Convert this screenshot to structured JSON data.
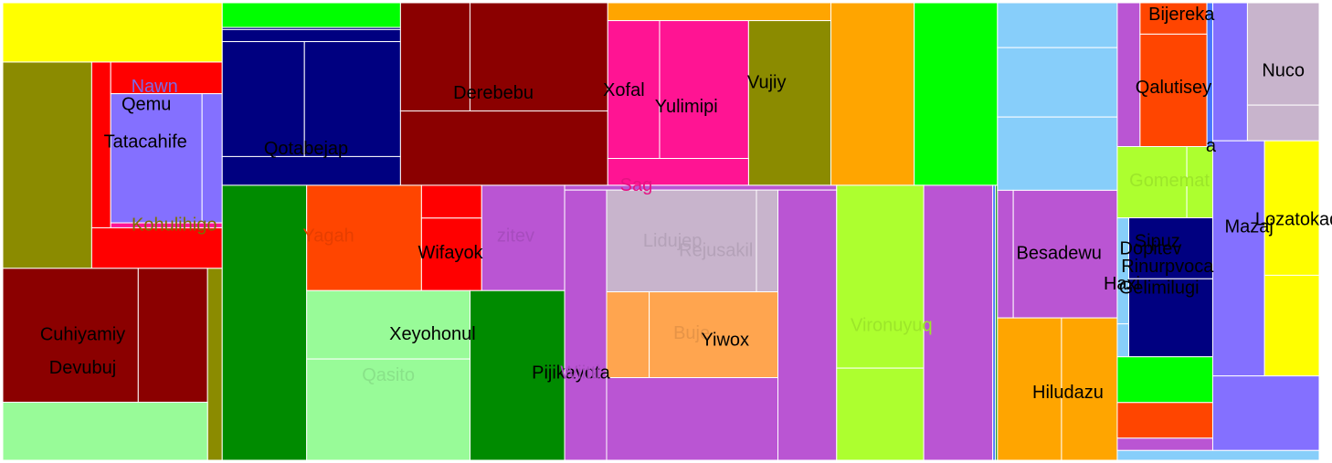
{
  "chart_data": {
    "type": "treemap",
    "title": "",
    "colors": {
      "yellow": "#ffff00",
      "olive": "#8b8b00",
      "red": "#ff0000",
      "slate": "#8470ff",
      "pink": "#ff1493",
      "maroon": "#8b0000",
      "palegreen": "#98fb98",
      "lime": "#00ff00",
      "navy": "#000080",
      "green": "#008b00",
      "orangered": "#ff4500",
      "orchid": "#ba55d3",
      "orange": "#ffa500",
      "thistle": "#c8b4cc",
      "sandy": "#ffa54f",
      "greenyellow": "#adff2f",
      "skyblue": "#87cefa",
      "royal": "#4876ff"
    },
    "leaves": [
      {
        "c": "yellow",
        "v": 3.1
      },
      {
        "c": "olive",
        "v": 4.37
      },
      {
        "c": "red",
        "v": 0.75
      },
      {
        "c": "red",
        "v": 0.84
      },
      {
        "c": "slate",
        "v": 2.81
      },
      {
        "c": "slate",
        "v": 0.62
      },
      {
        "c": "pink",
        "v": 0.13
      },
      {
        "c": "red",
        "v": 1.26
      },
      {
        "c": "maroon",
        "v": 4.32
      },
      {
        "c": "maroon",
        "v": 2.21
      },
      {
        "c": "olive",
        "v": 0.67
      },
      {
        "c": "palegreen",
        "v": 2.83
      },
      {
        "c": "lime",
        "v": 1.05
      },
      {
        "c": "navy",
        "v": 0.09
      },
      {
        "c": "navy",
        "v": 0.51
      },
      {
        "c": "navy",
        "v": 2.25
      },
      {
        "c": "navy",
        "v": 2.63
      },
      {
        "c": "navy",
        "v": 1.22
      },
      {
        "c": "maroon",
        "v": 1.79
      },
      {
        "c": "maroon",
        "v": 3.55
      },
      {
        "c": "maroon",
        "v": 3.67
      },
      {
        "c": "orange",
        "v": 0.95
      },
      {
        "c": "pink",
        "v": 1.7
      },
      {
        "c": "pink",
        "v": 2.92
      },
      {
        "c": "olive",
        "v": 3.23
      },
      {
        "c": "pink",
        "v": 0.9
      },
      {
        "c": "orange",
        "v": 3.62
      },
      {
        "c": "lime",
        "v": 3.62
      },
      {
        "c": "green",
        "v": 5.53
      },
      {
        "c": "orangered",
        "v": 2.88
      },
      {
        "c": "red",
        "v": 0.47
      },
      {
        "c": "red",
        "v": 1.04
      },
      {
        "c": "orchid",
        "v": 2.08
      },
      {
        "c": "palegreen",
        "v": 2.66
      },
      {
        "c": "palegreen",
        "v": 3.94
      },
      {
        "c": "green",
        "v": 3.82
      },
      {
        "c": "orchid",
        "v": 0.31
      },
      {
        "c": "orchid",
        "v": 2.7
      },
      {
        "c": "orchid",
        "v": 3.78
      },
      {
        "c": "thistle",
        "v": 3.63
      },
      {
        "c": "thistle",
        "v": 0.52
      },
      {
        "c": "sandy",
        "v": 0.87
      },
      {
        "c": "sandy",
        "v": 2.63
      },
      {
        "c": "orchid",
        "v": 3.37
      },
      {
        "c": "greenyellow",
        "v": 3.79
      },
      {
        "c": "greenyellow",
        "v": 1.91
      },
      {
        "c": "orchid",
        "v": 4.52
      },
      {
        "c": "royal",
        "v": 0.18
      },
      {
        "c": "green",
        "v": 0.13
      },
      {
        "c": "skyblue",
        "v": 1.28
      },
      {
        "c": "skyblue",
        "v": 1.98
      },
      {
        "c": "skyblue",
        "v": 2.09
      },
      {
        "c": "orchid",
        "v": 0.48
      },
      {
        "c": "orchid",
        "v": 3.16
      },
      {
        "c": "orange",
        "v": 2.17
      },
      {
        "c": "orange",
        "v": 1.89
      },
      {
        "c": "orchid",
        "v": 0.78
      },
      {
        "c": "orangered",
        "v": 0.5
      },
      {
        "c": "royal",
        "v": 0.2
      },
      {
        "c": "orangered",
        "v": 1.79
      },
      {
        "c": "greenyellow",
        "v": 1.18
      },
      {
        "c": "greenyellow",
        "v": 0.44
      },
      {
        "c": "skyblue",
        "v": 0.29
      },
      {
        "c": "skyblue",
        "v": 0.09
      },
      {
        "c": "navy",
        "v": 1.22
      },
      {
        "c": "navy",
        "v": 1.56
      },
      {
        "c": "lime",
        "v": 1.04
      },
      {
        "c": "orangered",
        "v": 0.81
      },
      {
        "c": "orchid",
        "v": 0.28
      },
      {
        "c": "slate",
        "v": 1.14
      },
      {
        "c": "thistle",
        "v": 1.75
      },
      {
        "c": "thistle",
        "v": 0.61
      },
      {
        "c": "slate",
        "v": 2.9
      },
      {
        "c": "yellow",
        "v": 1.75
      },
      {
        "c": "yellow",
        "v": 1.31
      },
      {
        "c": "slate",
        "v": 1.89
      },
      {
        "c": "skyblue",
        "v": 0.47
      }
    ],
    "labels": [
      {
        "text": "Qemu",
        "color": "#000000",
        "leaf": 4
      },
      {
        "text": "Tatacahife",
        "color": "#000000",
        "leaf": 4
      },
      {
        "text": "Nawn",
        "color": "#7b6ae6",
        "leaf": 4
      },
      {
        "text": "Kohulihigo",
        "color": "#7d6f00",
        "leaf": 6
      },
      {
        "text": "Cuhiyamiy",
        "color": "#000000",
        "leaf": 8
      },
      {
        "text": "Devubuj",
        "color": "#000000",
        "leaf": 8
      },
      {
        "text": "Qotabejap",
        "color": "#000000",
        "leaf": 15
      },
      {
        "text": "Derebebu",
        "color": "#000000",
        "leaf": 19
      },
      {
        "text": "Sag",
        "color": "#e61282",
        "leaf": 22
      },
      {
        "text": "Xofal",
        "color": "#000000",
        "leaf": 22
      },
      {
        "text": "Yulimipi",
        "color": "#000000",
        "leaf": 23
      },
      {
        "text": "Vujiy",
        "color": "#000000",
        "leaf": 24
      },
      {
        "text": "Yagah",
        "color": "#e63e00",
        "leaf": 29
      },
      {
        "text": "Wifayok",
        "color": "#000000",
        "leaf": 31
      },
      {
        "text": "zitev",
        "color": "#a74cbe",
        "leaf": 32
      },
      {
        "text": "Xeyohonul",
        "color": "#000000",
        "leaf": 33
      },
      {
        "text": "Qasito",
        "color": "#89e289",
        "leaf": 34
      },
      {
        "text": "Pijikayota",
        "color": "#000000",
        "leaf": 37
      },
      {
        "text": "Wiitti",
        "color": "#a74cbe",
        "leaf": 37
      },
      {
        "text": "Lidujep",
        "color": "#b4a2b8",
        "leaf": 39
      },
      {
        "text": "Rejusakil",
        "color": "#b4a2b8",
        "leaf": 39
      },
      {
        "text": "Buje",
        "color": "#e69447",
        "leaf": 42
      },
      {
        "text": "Yiwox",
        "color": "#000000",
        "leaf": 42
      },
      {
        "text": "Vironuyuq",
        "color": "#9ce62a",
        "leaf": 44
      },
      {
        "text": "Besadewu",
        "color": "#000000",
        "leaf": 53
      },
      {
        "text": "Hiludazu",
        "color": "#000000",
        "leaf": 54
      },
      {
        "text": "Bijereka",
        "color": "#000000",
        "leaf": 57
      },
      {
        "text": "a",
        "color": "#000000",
        "leaf": 58
      },
      {
        "text": "Qalutisey",
        "color": "#000000",
        "leaf": 59
      },
      {
        "text": "Gomemat",
        "color": "#9ce62a",
        "leaf": 60
      },
      {
        "text": "Haxi",
        "color": "#000000",
        "leaf": 62
      },
      {
        "text": "Sipuz",
        "color": "#000000",
        "leaf": 64
      },
      {
        "text": "Dopitev",
        "color": "#000000",
        "leaf": 64
      },
      {
        "text": "Rinurpvoca",
        "color": "#000000",
        "leaf": 64
      },
      {
        "text": "Gelimilugi",
        "color": "#000000",
        "leaf": 65
      },
      {
        "text": "Nuco",
        "color": "#000000",
        "leaf": 70
      },
      {
        "text": "Mazaj",
        "color": "#000000",
        "leaf": 72
      },
      {
        "text": "Lozatokad",
        "color": "#000000",
        "leaf": 73
      }
    ]
  }
}
